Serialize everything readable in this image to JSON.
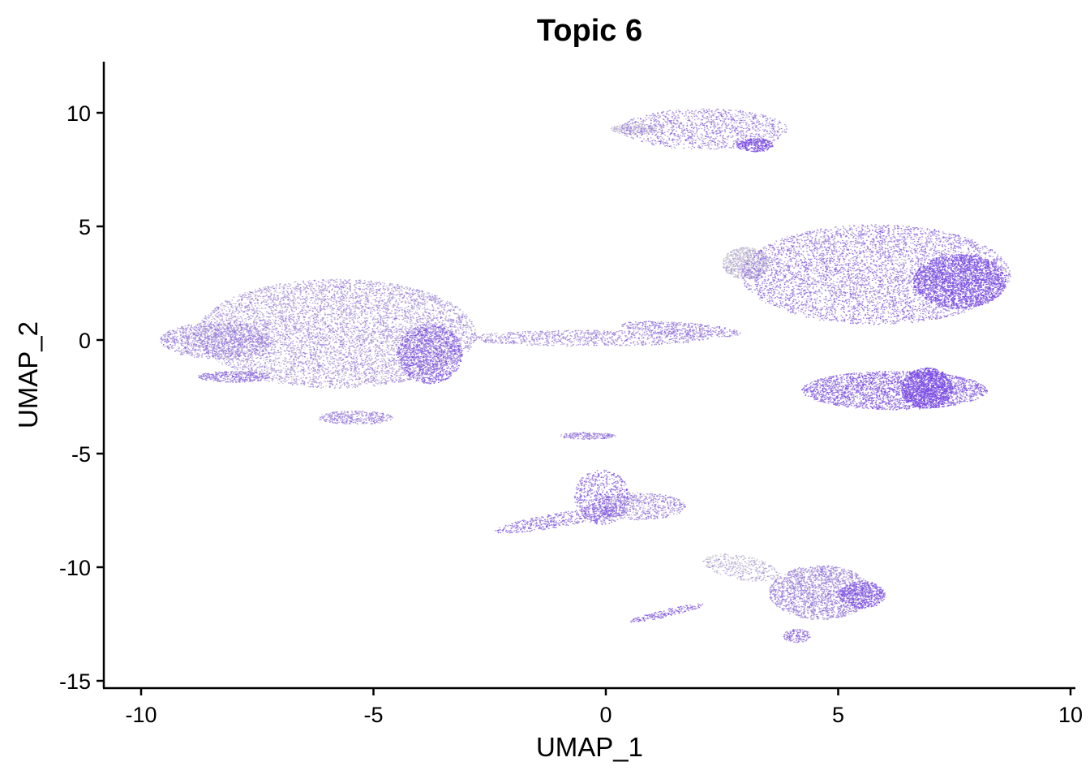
{
  "chart_data": {
    "type": "scatter",
    "title": "Topic 6",
    "xlabel": "UMAP_1",
    "ylabel": "UMAP_2",
    "xlim": [
      -10.8,
      10.1
    ],
    "ylim": [
      -15.3,
      12.2
    ],
    "xticks": [
      -10,
      -5,
      0,
      5,
      10
    ],
    "xtick_labels": [
      "-10",
      "-5",
      "0",
      "5",
      "10"
    ],
    "yticks": [
      10,
      5,
      0,
      -5,
      -10,
      -15
    ],
    "ytick_labels": [
      "10",
      "5",
      "0",
      "-5",
      "-10",
      "-15"
    ],
    "grid": false,
    "legend": "none",
    "color_scale": {
      "low": "#d3d3d3",
      "high": "#7b4be8",
      "encodes": "Topic 6 score"
    },
    "clusters": [
      {
        "cx": -5.8,
        "cy": 0.3,
        "rx": 3.0,
        "ry": 2.4,
        "n": 9000,
        "level": 0.35,
        "rot": 0
      },
      {
        "cx": -8.4,
        "cy": 0.0,
        "rx": 1.2,
        "ry": 0.8,
        "n": 1200,
        "level": 0.45,
        "rot": 0
      },
      {
        "cx": -8.0,
        "cy": -1.6,
        "rx": 0.8,
        "ry": 0.25,
        "n": 400,
        "level": 0.55,
        "rot": 0
      },
      {
        "cx": -3.8,
        "cy": -0.6,
        "rx": 0.7,
        "ry": 1.3,
        "n": 1400,
        "level": 0.7,
        "rot": 0
      },
      {
        "cx": -5.4,
        "cy": -3.4,
        "rx": 0.8,
        "ry": 0.3,
        "n": 400,
        "level": 0.45,
        "rot": 0
      },
      {
        "cx": -0.4,
        "cy": 0.1,
        "rx": 2.6,
        "ry": 0.35,
        "n": 900,
        "level": 0.45,
        "rot": 0
      },
      {
        "cx": 1.6,
        "cy": 0.5,
        "rx": 1.3,
        "ry": 0.3,
        "n": 500,
        "level": 0.5,
        "rot": -0.15
      },
      {
        "cx": 5.8,
        "cy": 2.9,
        "rx": 2.9,
        "ry": 2.2,
        "n": 9000,
        "level": 0.55,
        "rot": 0
      },
      {
        "cx": 3.0,
        "cy": 3.4,
        "rx": 0.5,
        "ry": 0.7,
        "n": 800,
        "level": 0.12,
        "rot": 0
      },
      {
        "cx": 7.6,
        "cy": 2.6,
        "rx": 1.0,
        "ry": 1.2,
        "n": 2200,
        "level": 0.85,
        "rot": 0
      },
      {
        "cx": 6.2,
        "cy": -2.2,
        "rx": 2.0,
        "ry": 0.85,
        "n": 2600,
        "level": 0.7,
        "rot": 0
      },
      {
        "cx": 6.9,
        "cy": -2.1,
        "rx": 0.55,
        "ry": 0.9,
        "n": 1200,
        "level": 0.95,
        "rot": 0
      },
      {
        "cx": 2.1,
        "cy": 9.3,
        "rx": 1.8,
        "ry": 0.9,
        "n": 1300,
        "level": 0.5,
        "rot": 0
      },
      {
        "cx": 0.6,
        "cy": 9.3,
        "rx": 0.5,
        "ry": 0.25,
        "n": 250,
        "level": 0.05,
        "rot": 0
      },
      {
        "cx": 3.2,
        "cy": 8.6,
        "rx": 0.4,
        "ry": 0.3,
        "n": 300,
        "level": 0.85,
        "rot": 0
      },
      {
        "cx": -0.1,
        "cy": -6.9,
        "rx": 0.6,
        "ry": 1.2,
        "n": 700,
        "level": 0.65,
        "rot": 0
      },
      {
        "cx": 0.7,
        "cy": -7.3,
        "rx": 1.0,
        "ry": 0.6,
        "n": 700,
        "level": 0.45,
        "rot": 0
      },
      {
        "cx": -1.0,
        "cy": -7.9,
        "rx": 1.5,
        "ry": 0.3,
        "n": 500,
        "level": 0.65,
        "rot": 0.35
      },
      {
        "cx": -0.4,
        "cy": -4.2,
        "rx": 0.6,
        "ry": 0.15,
        "n": 200,
        "level": 0.5,
        "rot": 0
      },
      {
        "cx": 2.9,
        "cy": -10.0,
        "rx": 0.9,
        "ry": 0.5,
        "n": 400,
        "level": 0.2,
        "rot": -0.5
      },
      {
        "cx": 4.6,
        "cy": -11.1,
        "rx": 1.1,
        "ry": 1.2,
        "n": 2000,
        "level": 0.45,
        "rot": 0
      },
      {
        "cx": 5.5,
        "cy": -11.2,
        "rx": 0.5,
        "ry": 0.6,
        "n": 600,
        "level": 0.75,
        "rot": 0
      },
      {
        "cx": 4.1,
        "cy": -13.0,
        "rx": 0.3,
        "ry": 0.3,
        "n": 150,
        "level": 0.6,
        "rot": 0
      },
      {
        "cx": 1.3,
        "cy": -12.0,
        "rx": 0.9,
        "ry": 0.15,
        "n": 200,
        "level": 0.7,
        "rot": 0.45
      }
    ]
  }
}
